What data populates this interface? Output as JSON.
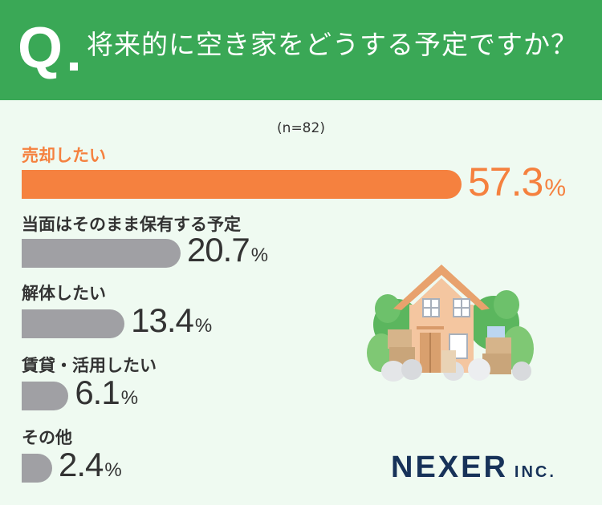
{
  "header": {
    "q_mark": "Q",
    "question": "将来的に空き家をどうする予定ですか？"
  },
  "chart_data": {
    "type": "bar",
    "orientation": "horizontal",
    "sample_note": "(n=82)",
    "unit": "%",
    "categories": [
      "売却したい",
      "当面はそのまま保有する予定",
      "解体したい",
      "賃貸・活用したい",
      "その他"
    ],
    "values": [
      57.3,
      20.7,
      13.4,
      6.1,
      2.4
    ],
    "value_labels": [
      "57.3",
      "20.7",
      "13.4",
      "6.1",
      "2.4"
    ],
    "highlight_color": "#f5813f",
    "bar_color": "#a0a0a4",
    "grid": false
  },
  "logo": {
    "name": "NEXER",
    "suffix": "INC."
  },
  "illustration": {
    "icon": "house-with-boxes-illustration"
  }
}
